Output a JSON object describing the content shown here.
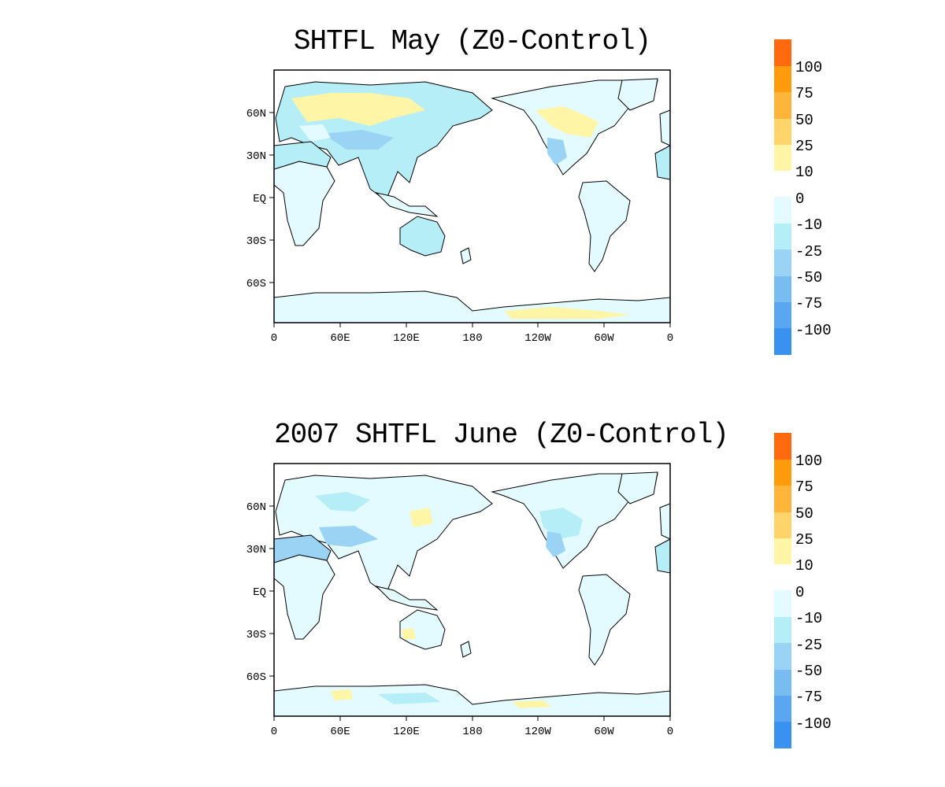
{
  "maps": [
    {
      "title": "SHTFL May (Z0-Control)",
      "lat_ticks": [
        "60N",
        "30N",
        "EQ",
        "30S",
        "60S"
      ],
      "lon_ticks": [
        "0",
        "60E",
        "120E",
        "180",
        "120W",
        "60W",
        "0"
      ]
    },
    {
      "title": "2007 SHTFL June (Z0-Control)",
      "lat_ticks": [
        "60N",
        "30N",
        "EQ",
        "30S",
        "60S"
      ],
      "lon_ticks": [
        "0",
        "60E",
        "120E",
        "180",
        "120W",
        "60W",
        "0"
      ]
    }
  ],
  "colorbar": {
    "positive_labels": [
      "100",
      "75",
      "50",
      "25",
      "10"
    ],
    "negative_labels": [
      "0",
      "-10",
      "-25",
      "-50",
      "-75",
      "-100"
    ],
    "positive_colors": [
      "#ff6a0f",
      "#ff9b0d",
      "#ffb53a",
      "#ffd46a",
      "#fff5a6"
    ],
    "negative_colors": [
      "#e3fbff",
      "#b6eef8",
      "#9ad3f4",
      "#79bcf2",
      "#5aa6f0",
      "#3a92f0"
    ]
  },
  "colors": {
    "land_blue_light": "#e3fbff",
    "land_blue_mid": "#b6eef8",
    "land_blue_dark": "#9ad3f4",
    "land_yellow": "#fff5a6",
    "coastline": "#000000"
  }
}
